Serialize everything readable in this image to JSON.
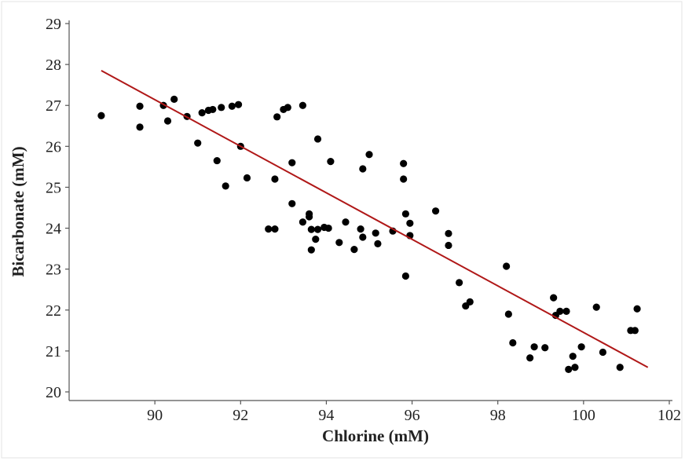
{
  "chart_data": {
    "type": "scatter",
    "title": "",
    "xlabel": "Chlorine (mM)",
    "ylabel": "Bicarbonate (mM)",
    "xlim": [
      88,
      102
    ],
    "ylim": [
      20,
      29
    ],
    "xticks": [
      90,
      92,
      94,
      96,
      98,
      100,
      102
    ],
    "yticks": [
      20,
      21,
      22,
      23,
      24,
      25,
      26,
      27,
      28,
      29
    ],
    "grid": false,
    "legend": "none",
    "point_color": "#000000",
    "trendline": {
      "color": "#b01818",
      "x": [
        88.75,
        101.5
      ],
      "y": [
        27.85,
        20.6
      ]
    },
    "points": [
      [
        88.75,
        26.75
      ],
      [
        89.65,
        26.98
      ],
      [
        89.65,
        26.47
      ],
      [
        90.2,
        27.0
      ],
      [
        90.3,
        26.62
      ],
      [
        90.45,
        27.15
      ],
      [
        90.75,
        26.73
      ],
      [
        91.0,
        26.08
      ],
      [
        91.1,
        26.82
      ],
      [
        91.25,
        26.88
      ],
      [
        91.35,
        26.9
      ],
      [
        91.45,
        25.65
      ],
      [
        91.55,
        26.95
      ],
      [
        91.65,
        25.03
      ],
      [
        91.8,
        26.98
      ],
      [
        91.95,
        27.02
      ],
      [
        92.0,
        26.0
      ],
      [
        92.15,
        25.23
      ],
      [
        92.65,
        23.98
      ],
      [
        92.8,
        23.98
      ],
      [
        92.8,
        25.2
      ],
      [
        92.85,
        26.72
      ],
      [
        93.0,
        26.9
      ],
      [
        93.1,
        26.95
      ],
      [
        93.2,
        25.6
      ],
      [
        93.2,
        24.6
      ],
      [
        93.45,
        24.15
      ],
      [
        93.45,
        27.0
      ],
      [
        93.6,
        24.35
      ],
      [
        93.6,
        24.28
      ],
      [
        93.65,
        23.97
      ],
      [
        93.65,
        23.47
      ],
      [
        93.75,
        23.73
      ],
      [
        93.8,
        23.97
      ],
      [
        93.8,
        26.18
      ],
      [
        93.95,
        24.02
      ],
      [
        94.05,
        24.0
      ],
      [
        94.1,
        25.63
      ],
      [
        94.3,
        23.65
      ],
      [
        94.45,
        24.15
      ],
      [
        94.65,
        23.48
      ],
      [
        94.8,
        23.98
      ],
      [
        94.85,
        25.45
      ],
      [
        94.85,
        23.78
      ],
      [
        95.0,
        25.8
      ],
      [
        95.15,
        23.88
      ],
      [
        95.2,
        23.62
      ],
      [
        95.55,
        23.93
      ],
      [
        95.8,
        25.58
      ],
      [
        95.8,
        25.2
      ],
      [
        95.85,
        24.35
      ],
      [
        95.85,
        22.83
      ],
      [
        95.95,
        24.12
      ],
      [
        95.95,
        23.82
      ],
      [
        96.55,
        24.42
      ],
      [
        96.85,
        23.58
      ],
      [
        96.85,
        23.87
      ],
      [
        97.1,
        22.67
      ],
      [
        97.25,
        22.1
      ],
      [
        97.35,
        22.2
      ],
      [
        98.2,
        23.07
      ],
      [
        98.25,
        21.9
      ],
      [
        98.35,
        21.2
      ],
      [
        98.75,
        20.83
      ],
      [
        98.85,
        21.1
      ],
      [
        99.1,
        21.08
      ],
      [
        99.3,
        22.3
      ],
      [
        99.35,
        21.87
      ],
      [
        99.45,
        21.97
      ],
      [
        99.6,
        21.97
      ],
      [
        99.65,
        20.55
      ],
      [
        99.75,
        20.87
      ],
      [
        99.8,
        20.6
      ],
      [
        99.95,
        21.1
      ],
      [
        100.3,
        22.07
      ],
      [
        100.45,
        20.97
      ],
      [
        100.85,
        20.6
      ],
      [
        101.1,
        21.5
      ],
      [
        101.2,
        21.5
      ],
      [
        101.25,
        22.03
      ]
    ]
  }
}
